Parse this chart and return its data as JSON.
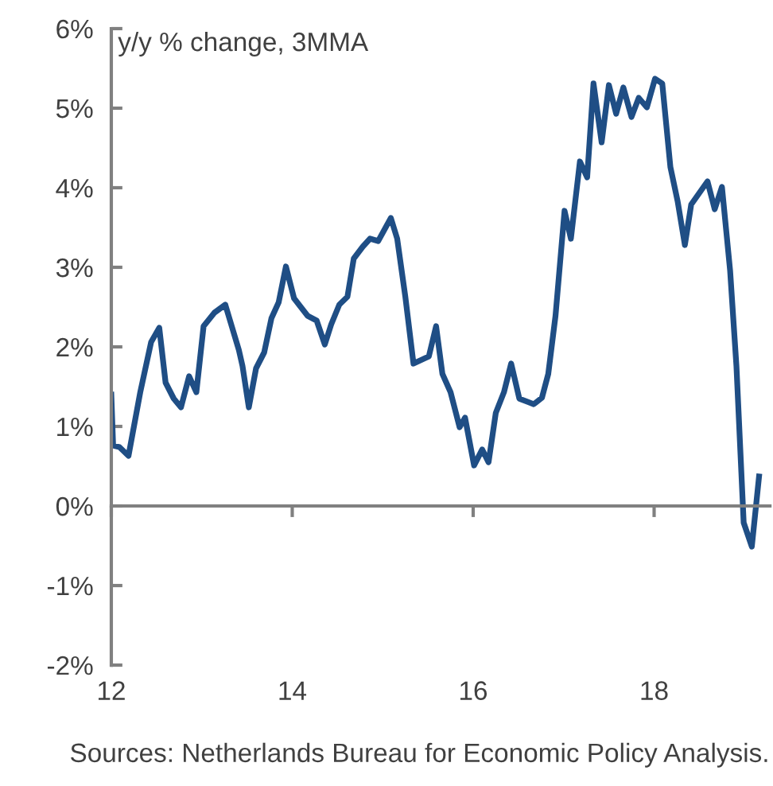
{
  "chart_data": {
    "type": "line",
    "title": "y/y % change, 3MMA",
    "annotations": [
      "Sources: Netherlands Bureau for Economic Policy Analysis."
    ],
    "xlim": [
      12,
      19.28
    ],
    "xticks": [
      12,
      14,
      16,
      18
    ],
    "ylim": [
      -2,
      6
    ],
    "yticks": [
      {
        "value": -2,
        "label": "-2%"
      },
      {
        "value": -1,
        "label": "-1%"
      },
      {
        "value": 0,
        "label": "0%"
      },
      {
        "value": 1,
        "label": "1%"
      },
      {
        "value": 2,
        "label": "2%"
      },
      {
        "value": 3,
        "label": "3%"
      },
      {
        "value": 4,
        "label": "4%"
      },
      {
        "value": 5,
        "label": "5%"
      },
      {
        "value": 6,
        "label": "6%"
      }
    ],
    "legend": false,
    "marker": "none",
    "line_style": "solid",
    "series": [
      {
        "color": "#1f4e85",
        "x": [
          12.0,
          12.02,
          12.09,
          12.19,
          12.32,
          12.44,
          12.53,
          12.6,
          12.69,
          12.77,
          12.86,
          12.94,
          13.02,
          13.14,
          13.26,
          13.41,
          13.45,
          13.52,
          13.6,
          13.69,
          13.77,
          13.85,
          13.93,
          14.02,
          14.17,
          14.27,
          14.36,
          14.43,
          14.52,
          14.61,
          14.68,
          14.78,
          14.86,
          14.95,
          15.09,
          15.16,
          15.25,
          15.34,
          15.51,
          15.59,
          15.66,
          15.75,
          15.85,
          15.91,
          16.01,
          16.1,
          16.17,
          16.25,
          16.34,
          16.42,
          16.51,
          16.67,
          16.76,
          16.83,
          16.91,
          17.01,
          17.08,
          17.18,
          17.26,
          17.33,
          17.42,
          17.5,
          17.58,
          17.66,
          17.75,
          17.83,
          17.92,
          18.01,
          18.09,
          18.18,
          18.26,
          18.34,
          18.41,
          18.59,
          18.67,
          18.75,
          18.84,
          18.91,
          18.99,
          19.08,
          19.16
        ],
        "values": [
          1.4,
          0.76,
          0.74,
          0.63,
          1.43,
          2.06,
          2.24,
          1.55,
          1.35,
          1.24,
          1.63,
          1.43,
          2.26,
          2.43,
          2.53,
          1.96,
          1.76,
          1.24,
          1.73,
          1.93,
          2.36,
          2.56,
          3.01,
          2.61,
          2.39,
          2.33,
          2.03,
          2.28,
          2.53,
          2.63,
          3.11,
          3.26,
          3.36,
          3.33,
          3.62,
          3.36,
          2.63,
          1.79,
          1.88,
          2.26,
          1.66,
          1.43,
          0.99,
          1.11,
          0.51,
          0.71,
          0.55,
          1.17,
          1.43,
          1.79,
          1.35,
          1.28,
          1.36,
          1.66,
          2.39,
          3.71,
          3.36,
          4.33,
          4.13,
          5.31,
          4.57,
          5.29,
          4.93,
          5.26,
          4.89,
          5.13,
          5.01,
          5.37,
          5.31,
          4.26,
          3.83,
          3.28,
          3.79,
          4.08,
          3.73,
          4.01,
          2.96,
          1.76,
          -0.21,
          -0.51,
          0.37
        ]
      }
    ]
  }
}
